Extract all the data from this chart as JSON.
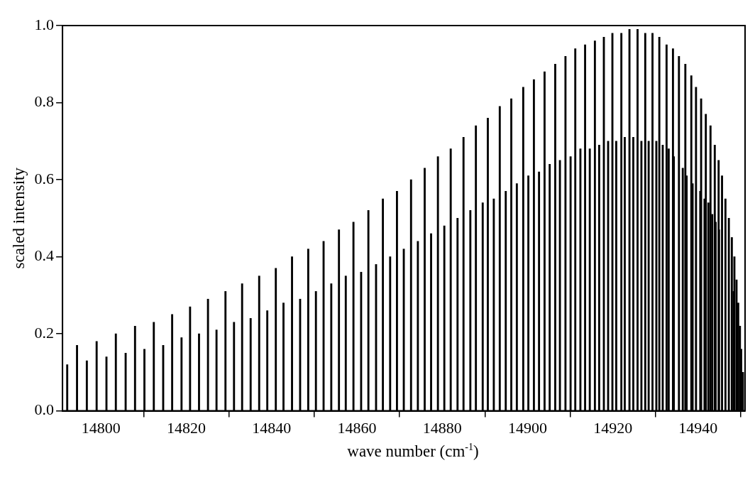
{
  "chart_data": {
    "type": "bar",
    "xlabel": "wave number (cm$^{-1}$)",
    "ylabel": "scaled intensity",
    "xlim": [
      14791,
      14951
    ],
    "ylim": [
      0,
      1
    ],
    "xticks": [
      14800,
      14820,
      14840,
      14860,
      14880,
      14900,
      14920,
      14940
    ],
    "yticks": [
      {
        "value": 0,
        "label": "0.0"
      },
      0.2,
      0.4,
      0.6,
      0.8,
      {
        "value": 1,
        "label": "1.0"
      }
    ],
    "color": "#000000",
    "x": [
      14792.1,
      14794.4,
      14796.7,
      14799.0,
      14801.3,
      14803.5,
      14805.8,
      14808.0,
      14810.2,
      14812.4,
      14814.6,
      14816.7,
      14818.9,
      14820.9,
      14823.0,
      14825.1,
      14827.1,
      14829.2,
      14831.2,
      14833.1,
      14835.1,
      14837.1,
      14839.0,
      14841.0,
      14842.8,
      14844.8,
      14846.7,
      14848.6,
      14850.4,
      14852.2,
      14854.0,
      14855.8,
      14857.4,
      14859.2,
      14861.0,
      14862.7,
      14864.5,
      14866.1,
      14867.8,
      14869.4,
      14871.0,
      14872.7,
      14874.3,
      14875.9,
      14877.4,
      14879.0,
      14880.5,
      14882.0,
      14883.6,
      14885.0,
      14886.6,
      14887.9,
      14889.5,
      14890.7,
      14892.1,
      14893.5,
      14894.9,
      14896.2,
      14897.5,
      14899.0,
      14900.2,
      14901.5,
      14902.7,
      14904.0,
      14905.2,
      14906.5,
      14907.6,
      14908.9,
      14910.1,
      14911.2,
      14912.4,
      14913.5,
      14914.6,
      14915.8,
      14916.8,
      14917.9,
      14918.9,
      14919.9,
      14920.8,
      14922.0,
      14922.8,
      14923.9,
      14924.8,
      14925.8,
      14926.7,
      14927.6,
      14928.4,
      14929.3,
      14930.2,
      14930.9,
      14931.7,
      14932.6,
      14933.1,
      14934.1,
      14934.3,
      14935.5,
      14936.4,
      14937.0,
      14937.3,
      14938.4,
      14938.7,
      14939.5,
      14940.5,
      14940.7,
      14941.5,
      14941.8,
      14942.4,
      14942.9,
      14943.3,
      14943.9,
      14944.1,
      14944.8,
      14944.9,
      14945.6,
      14946.4,
      14947.2,
      14947.7,
      14947.9,
      14948.3,
      14948.5,
      14948.9,
      14949.0,
      14949.4,
      14949.8,
      14950.1,
      14950.5
    ],
    "values": [
      0.12,
      0.17,
      0.13,
      0.18,
      0.14,
      0.2,
      0.15,
      0.22,
      0.16,
      0.23,
      0.17,
      0.25,
      0.19,
      0.27,
      0.2,
      0.29,
      0.21,
      0.31,
      0.23,
      0.33,
      0.24,
      0.35,
      0.26,
      0.37,
      0.28,
      0.4,
      0.29,
      0.42,
      0.31,
      0.44,
      0.33,
      0.47,
      0.35,
      0.49,
      0.36,
      0.52,
      0.38,
      0.55,
      0.4,
      0.57,
      0.42,
      0.6,
      0.44,
      0.63,
      0.46,
      0.66,
      0.48,
      0.68,
      0.5,
      0.71,
      0.52,
      0.74,
      0.54,
      0.76,
      0.55,
      0.79,
      0.57,
      0.81,
      0.59,
      0.84,
      0.61,
      0.86,
      0.62,
      0.88,
      0.64,
      0.9,
      0.65,
      0.92,
      0.66,
      0.94,
      0.68,
      0.95,
      0.68,
      0.96,
      0.69,
      0.97,
      0.7,
      0.98,
      0.7,
      0.98,
      0.71,
      0.99,
      0.71,
      0.99,
      0.7,
      0.98,
      0.7,
      0.98,
      0.7,
      0.97,
      0.69,
      0.95,
      0.68,
      0.94,
      0.66,
      0.92,
      0.63,
      0.9,
      0.61,
      0.87,
      0.59,
      0.84,
      0.57,
      0.81,
      0.55,
      0.77,
      0.54,
      0.74,
      0.51,
      0.69,
      0.49,
      0.65,
      0.47,
      0.61,
      0.55,
      0.5,
      null,
      0.45,
      0.31,
      0.4,
      null,
      0.34,
      0.28,
      0.22,
      0.16,
      0.1
    ]
  }
}
